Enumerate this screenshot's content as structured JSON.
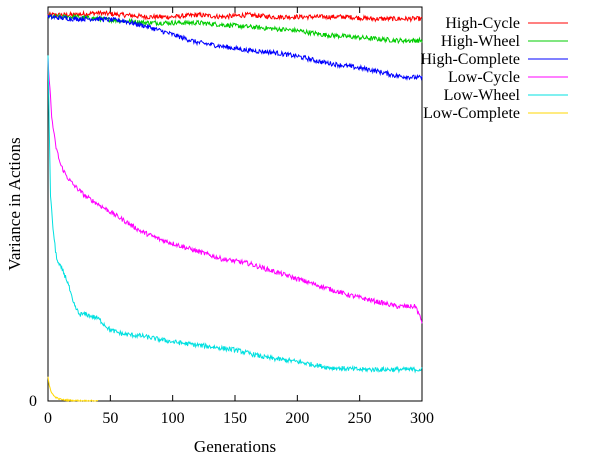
{
  "chart_data": {
    "type": "line",
    "title": "",
    "xlabel": "Generations",
    "ylabel": "Variance in Actions",
    "xlim": [
      0,
      300
    ],
    "ylim": [
      0,
      1
    ],
    "x_ticks": [
      0,
      50,
      100,
      150,
      200,
      250,
      300
    ],
    "y_ticks": [
      0
    ],
    "y_tick_labels": [
      "0"
    ],
    "grid": false,
    "legend_position": "outside-right",
    "series": [
      {
        "name": "High-Cycle",
        "color": "#ff0000",
        "x": [
          0,
          20,
          40,
          60,
          80,
          100,
          120,
          140,
          160,
          180,
          200,
          220,
          240,
          260,
          280,
          300
        ],
        "y": [
          0.98,
          0.98,
          0.985,
          0.98,
          0.975,
          0.975,
          0.98,
          0.975,
          0.98,
          0.975,
          0.975,
          0.975,
          0.975,
          0.97,
          0.97,
          0.97
        ]
      },
      {
        "name": "High-Wheel",
        "color": "#00cc00",
        "x": [
          0,
          20,
          40,
          60,
          80,
          100,
          120,
          140,
          160,
          180,
          200,
          220,
          240,
          260,
          280,
          300
        ],
        "y": [
          0.975,
          0.975,
          0.97,
          0.965,
          0.96,
          0.96,
          0.96,
          0.955,
          0.95,
          0.945,
          0.94,
          0.93,
          0.925,
          0.92,
          0.915,
          0.915
        ]
      },
      {
        "name": "High-Complete",
        "color": "#0000ff",
        "x": [
          0,
          20,
          40,
          60,
          80,
          100,
          120,
          140,
          160,
          180,
          200,
          220,
          240,
          260,
          280,
          300
        ],
        "y": [
          0.975,
          0.97,
          0.97,
          0.965,
          0.95,
          0.93,
          0.91,
          0.9,
          0.89,
          0.885,
          0.875,
          0.86,
          0.85,
          0.84,
          0.825,
          0.82
        ]
      },
      {
        "name": "Low-Cycle",
        "color": "#ff00ff",
        "x": [
          0,
          3,
          6,
          10,
          15,
          20,
          30,
          40,
          50,
          60,
          75,
          90,
          100,
          120,
          140,
          160,
          180,
          200,
          220,
          240,
          260,
          280,
          295,
          300
        ],
        "y": [
          0.87,
          0.72,
          0.65,
          0.6,
          0.57,
          0.55,
          0.52,
          0.5,
          0.48,
          0.46,
          0.43,
          0.41,
          0.4,
          0.38,
          0.36,
          0.35,
          0.33,
          0.31,
          0.29,
          0.27,
          0.255,
          0.24,
          0.24,
          0.2
        ]
      },
      {
        "name": "Low-Wheel",
        "color": "#00e0e0",
        "x": [
          0,
          1,
          2,
          4,
          6,
          8,
          12,
          16,
          20,
          25,
          30,
          40,
          50,
          60,
          75,
          100,
          125,
          150,
          175,
          200,
          225,
          250,
          275,
          300
        ],
        "y": [
          0.88,
          0.7,
          0.52,
          0.44,
          0.38,
          0.35,
          0.33,
          0.3,
          0.25,
          0.22,
          0.22,
          0.21,
          0.18,
          0.17,
          0.165,
          0.15,
          0.14,
          0.13,
          0.11,
          0.1,
          0.085,
          0.08,
          0.08,
          0.08
        ]
      },
      {
        "name": "Low-Complete",
        "color": "#ffd700",
        "x": [
          0,
          1,
          2,
          3,
          5,
          8,
          12,
          20,
          40
        ],
        "y": [
          0.06,
          0.04,
          0.03,
          0.02,
          0.012,
          0.006,
          0.003,
          0.001,
          0.0
        ]
      }
    ]
  }
}
